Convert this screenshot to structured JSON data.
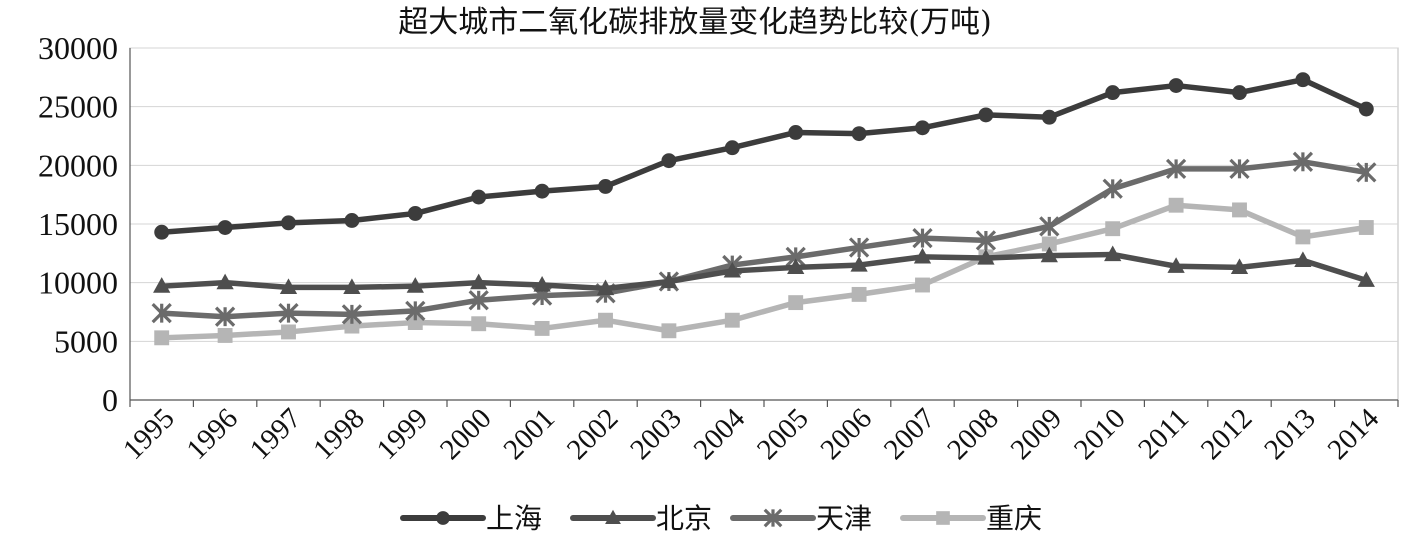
{
  "chart_data": {
    "type": "line",
    "title": "超大城市二氧化碳排放量变化趋势比较(万吨)",
    "xlabel": "",
    "ylabel": "",
    "ylim": [
      0,
      30000
    ],
    "yticks": [
      "0",
      "5000",
      "10000",
      "15000",
      "20000",
      "25000",
      "30000"
    ],
    "categories": [
      "1995",
      "1996",
      "1997",
      "1998",
      "1999",
      "2000",
      "2001",
      "2002",
      "2003",
      "2004",
      "2005",
      "2006",
      "2007",
      "2008",
      "2009",
      "2010",
      "2011",
      "2012",
      "2013",
      "2014"
    ],
    "grid": true,
    "legend_position": "bottom",
    "series": [
      {
        "name": "上海",
        "color": "#3c3c3c",
        "marker": "circle",
        "values": [
          14300,
          14700,
          15100,
          15300,
          15900,
          17300,
          17800,
          18200,
          20400,
          21500,
          22800,
          22700,
          23200,
          24300,
          24100,
          26200,
          26800,
          26200,
          27300,
          24800
        ]
      },
      {
        "name": "北京",
        "color": "#4e4e4e",
        "marker": "triangle",
        "values": [
          9700,
          10000,
          9600,
          9600,
          9700,
          10000,
          9800,
          9500,
          10100,
          11000,
          11300,
          11500,
          12200,
          12100,
          12300,
          12400,
          11400,
          11300,
          11900,
          10200
        ]
      },
      {
        "name": "天津",
        "color": "#6b6b6b",
        "marker": "star",
        "values": [
          7400,
          7100,
          7400,
          7300,
          7600,
          8500,
          8900,
          9100,
          10100,
          11500,
          12200,
          13000,
          13800,
          13600,
          14800,
          18000,
          19700,
          19700,
          20300,
          19400
        ]
      },
      {
        "name": "重庆",
        "color": "#b5b5b5",
        "marker": "square",
        "values": [
          5300,
          5500,
          5800,
          6300,
          6600,
          6500,
          6100,
          6800,
          5900,
          6800,
          8300,
          9000,
          9800,
          12200,
          13300,
          14600,
          16600,
          16200,
          13900,
          14700
        ]
      }
    ]
  }
}
